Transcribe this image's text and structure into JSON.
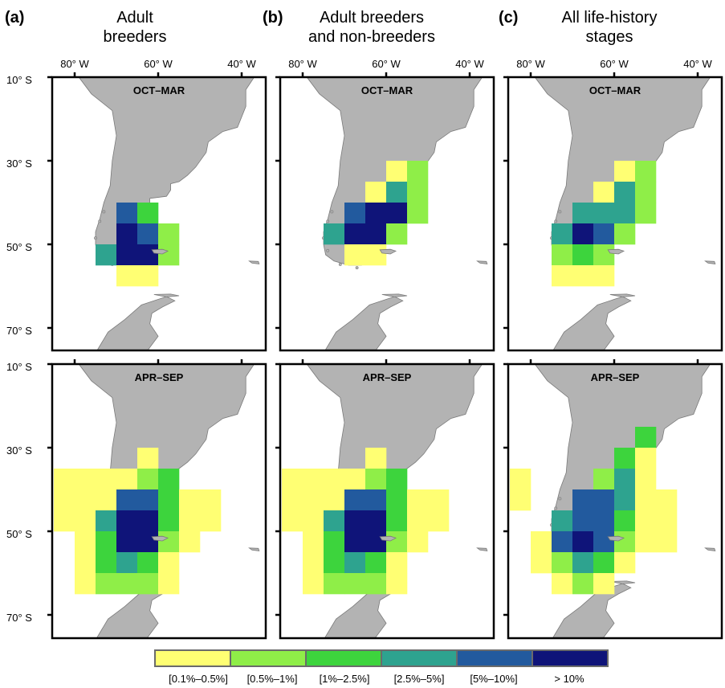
{
  "columns": [
    {
      "letter": "(a)",
      "title_line1": "Adult",
      "title_line2": "breeders"
    },
    {
      "letter": "(b)",
      "title_line1": "Adult breeders",
      "title_line2": "and non-breeders"
    },
    {
      "letter": "(c)",
      "title_line1": "All life-history",
      "title_line2": "stages"
    }
  ],
  "rows": [
    {
      "season": "OCT–MAR"
    },
    {
      "season": "APR–SEP"
    }
  ],
  "x_ticks": [
    "80° W",
    "60° W",
    "40° W"
  ],
  "y_ticks": [
    "10° S",
    "30° S",
    "50° S",
    "70° S"
  ],
  "legend": [
    {
      "label": "[0.1%–0.5%]",
      "color": "#ffff73"
    },
    {
      "label": "[0.5%–1%]",
      "color": "#8fee48"
    },
    {
      "label": "[1%–2.5%]",
      "color": "#3dd43d"
    },
    {
      "label": "[2.5%–5%]",
      "color": "#2ea38f"
    },
    {
      "label": "[5%–10%]",
      "color": "#225a9e"
    },
    {
      "label": "> 10%",
      "color": "#0f1479"
    }
  ],
  "colors": {
    "land": "#b3b3b3",
    "land_edge": "#7a7a7a",
    "frame": "#000000"
  },
  "grid_cells_5deg": [
    [
      [
        [
          -70,
          -40,
          4
        ],
        [
          -65,
          -40,
          2
        ],
        [
          -70,
          -45,
          5
        ],
        [
          -65,
          -45,
          4
        ],
        [
          -60,
          -45,
          1
        ],
        [
          -75,
          -50,
          3
        ],
        [
          -70,
          -50,
          5
        ],
        [
          -65,
          -50,
          5
        ],
        [
          -60,
          -50,
          1
        ],
        [
          -70,
          -55,
          0
        ],
        [
          -65,
          -55,
          0
        ]
      ],
      [
        [
          -60,
          -30,
          0
        ],
        [
          -55,
          -30,
          1
        ],
        [
          -65,
          -35,
          0
        ],
        [
          -60,
          -35,
          3
        ],
        [
          -55,
          -35,
          1
        ],
        [
          -70,
          -40,
          4
        ],
        [
          -65,
          -40,
          5
        ],
        [
          -60,
          -40,
          5
        ],
        [
          -55,
          -40,
          1
        ],
        [
          -75,
          -45,
          3
        ],
        [
          -70,
          -45,
          5
        ],
        [
          -65,
          -45,
          5
        ],
        [
          -60,
          -45,
          1
        ],
        [
          -70,
          -50,
          0
        ],
        [
          -65,
          -50,
          0
        ]
      ],
      [
        [
          -60,
          -30,
          0
        ],
        [
          -55,
          -30,
          1
        ],
        [
          -65,
          -35,
          0
        ],
        [
          -60,
          -35,
          3
        ],
        [
          -55,
          -35,
          1
        ],
        [
          -70,
          -40,
          3
        ],
        [
          -65,
          -40,
          3
        ],
        [
          -60,
          -40,
          3
        ],
        [
          -55,
          -40,
          1
        ],
        [
          -75,
          -45,
          3
        ],
        [
          -70,
          -45,
          5
        ],
        [
          -65,
          -45,
          4
        ],
        [
          -60,
          -45,
          1
        ],
        [
          -75,
          -50,
          1
        ],
        [
          -70,
          -50,
          2
        ],
        [
          -65,
          -50,
          1
        ],
        [
          -75,
          -55,
          0
        ],
        [
          -70,
          -55,
          0
        ],
        [
          -65,
          -55,
          0
        ]
      ]
    ],
    [
      [
        [
          -65,
          -30,
          0
        ],
        [
          -85,
          -35,
          0
        ],
        [
          -80,
          -35,
          0
        ],
        [
          -75,
          -35,
          0
        ],
        [
          -70,
          -35,
          0
        ],
        [
          -65,
          -35,
          1
        ],
        [
          -60,
          -35,
          2
        ],
        [
          -85,
          -40,
          0
        ],
        [
          -80,
          -40,
          0
        ],
        [
          -75,
          -40,
          0
        ],
        [
          -70,
          -40,
          4
        ],
        [
          -65,
          -40,
          4
        ],
        [
          -60,
          -40,
          2
        ],
        [
          -55,
          -40,
          0
        ],
        [
          -50,
          -40,
          0
        ],
        [
          -85,
          -45,
          0
        ],
        [
          -80,
          -45,
          0
        ],
        [
          -75,
          -45,
          3
        ],
        [
          -70,
          -45,
          5
        ],
        [
          -65,
          -45,
          5
        ],
        [
          -60,
          -45,
          2
        ],
        [
          -55,
          -45,
          0
        ],
        [
          -50,
          -45,
          0
        ],
        [
          -80,
          -50,
          0
        ],
        [
          -75,
          -50,
          2
        ],
        [
          -70,
          -50,
          5
        ],
        [
          -65,
          -50,
          5
        ],
        [
          -60,
          -50,
          1
        ],
        [
          -55,
          -50,
          0
        ],
        [
          -80,
          -55,
          0
        ],
        [
          -75,
          -55,
          2
        ],
        [
          -70,
          -55,
          3
        ],
        [
          -65,
          -55,
          2
        ],
        [
          -60,
          -55,
          0
        ],
        [
          -80,
          -60,
          0
        ],
        [
          -75,
          -60,
          1
        ],
        [
          -70,
          -60,
          1
        ],
        [
          -65,
          -60,
          1
        ],
        [
          -60,
          -60,
          0
        ]
      ],
      [
        [
          -65,
          -30,
          0
        ],
        [
          -85,
          -35,
          0
        ],
        [
          -80,
          -35,
          0
        ],
        [
          -75,
          -35,
          0
        ],
        [
          -70,
          -35,
          0
        ],
        [
          -65,
          -35,
          1
        ],
        [
          -60,
          -35,
          2
        ],
        [
          -85,
          -40,
          0
        ],
        [
          -80,
          -40,
          0
        ],
        [
          -75,
          -40,
          0
        ],
        [
          -70,
          -40,
          4
        ],
        [
          -65,
          -40,
          4
        ],
        [
          -60,
          -40,
          2
        ],
        [
          -55,
          -40,
          0
        ],
        [
          -50,
          -40,
          0
        ],
        [
          -85,
          -45,
          0
        ],
        [
          -80,
          -45,
          0
        ],
        [
          -75,
          -45,
          3
        ],
        [
          -70,
          -45,
          5
        ],
        [
          -65,
          -45,
          5
        ],
        [
          -60,
          -45,
          2
        ],
        [
          -55,
          -45,
          0
        ],
        [
          -50,
          -45,
          0
        ],
        [
          -80,
          -50,
          0
        ],
        [
          -75,
          -50,
          2
        ],
        [
          -70,
          -50,
          5
        ],
        [
          -65,
          -50,
          5
        ],
        [
          -60,
          -50,
          1
        ],
        [
          -55,
          -50,
          0
        ],
        [
          -80,
          -55,
          0
        ],
        [
          -75,
          -55,
          2
        ],
        [
          -70,
          -55,
          3
        ],
        [
          -65,
          -55,
          2
        ],
        [
          -60,
          -55,
          0
        ],
        [
          -80,
          -60,
          0
        ],
        [
          -75,
          -60,
          1
        ],
        [
          -70,
          -60,
          1
        ],
        [
          -65,
          -60,
          1
        ],
        [
          -60,
          -60,
          0
        ]
      ],
      [
        [
          -55,
          -25,
          2
        ],
        [
          -60,
          -30,
          2
        ],
        [
          -55,
          -30,
          0
        ],
        [
          -85,
          -35,
          0
        ],
        [
          -65,
          -35,
          1
        ],
        [
          -60,
          -35,
          3
        ],
        [
          -55,
          -35,
          0
        ],
        [
          -85,
          -40,
          0
        ],
        [
          -70,
          -40,
          4
        ],
        [
          -65,
          -40,
          4
        ],
        [
          -60,
          -40,
          3
        ],
        [
          -55,
          -40,
          0
        ],
        [
          -50,
          -40,
          0
        ],
        [
          -75,
          -45,
          3
        ],
        [
          -70,
          -45,
          4
        ],
        [
          -65,
          -45,
          4
        ],
        [
          -60,
          -45,
          2
        ],
        [
          -55,
          -45,
          0
        ],
        [
          -50,
          -45,
          0
        ],
        [
          -80,
          -50,
          0
        ],
        [
          -75,
          -50,
          4
        ],
        [
          -70,
          -50,
          5
        ],
        [
          -65,
          -50,
          4
        ],
        [
          -60,
          -50,
          1
        ],
        [
          -55,
          -50,
          0
        ],
        [
          -50,
          -50,
          0
        ],
        [
          -80,
          -55,
          0
        ],
        [
          -75,
          -55,
          1
        ],
        [
          -70,
          -55,
          3
        ],
        [
          -65,
          -55,
          2
        ],
        [
          -60,
          -55,
          0
        ],
        [
          -75,
          -60,
          0
        ],
        [
          -70,
          -60,
          1
        ],
        [
          -65,
          -60,
          0
        ]
      ]
    ]
  ]
}
